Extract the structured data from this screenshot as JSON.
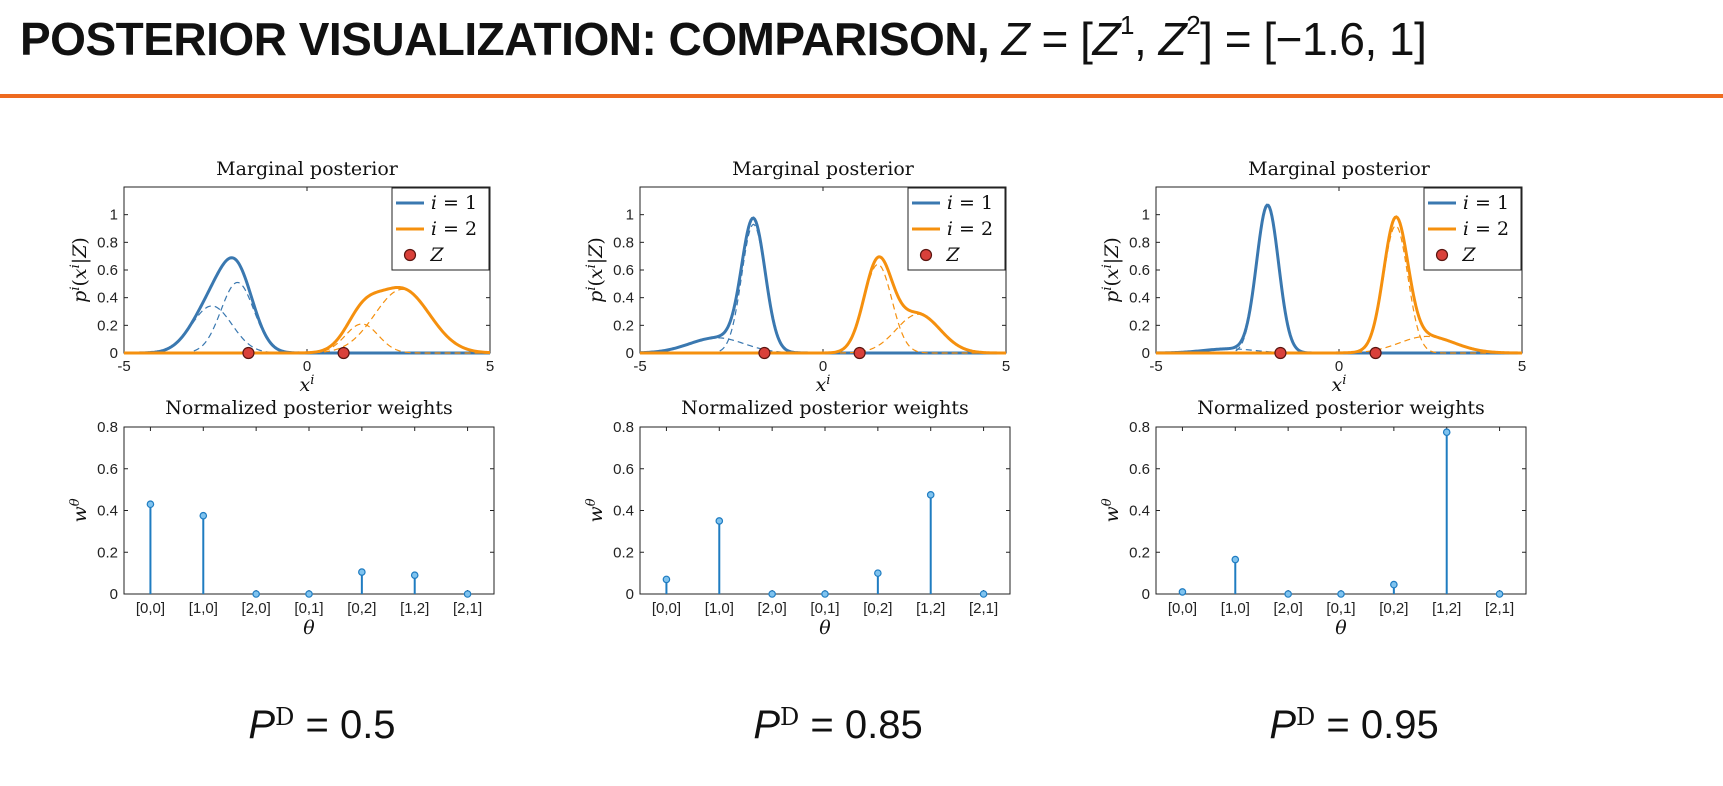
{
  "title": {
    "main": "POSTERIOR VISUALIZATION: COMPARISON, ",
    "math_z": "Z",
    "math_eq": " = [",
    "math_z1": "Z",
    "sup1": "1",
    "comma": ",  ",
    "math_z2": "Z",
    "sup2": "2",
    "math_rest": "] = [−1.6,  1]"
  },
  "colors": {
    "accent_rule": "#ee6a1f",
    "series_i1": "#3a78b0",
    "series_i2": "#f5900e",
    "marker_fill": "#d9403a",
    "stem": "#1f7cc1"
  },
  "chart_data": [
    {
      "type": "line",
      "title": "Marginal posterior",
      "xlabel": "x^i",
      "ylabel": "p^i(x^i|Z)",
      "xlim": [
        -5,
        5
      ],
      "ylim": [
        0,
        1.2
      ],
      "xticks": [
        "-5",
        "0",
        "5"
      ],
      "yticks": [
        "0",
        "0.2",
        "0.4",
        "0.6",
        "0.8",
        "1"
      ],
      "legend": {
        "placement": "top-right",
        "entries": [
          "i = 1",
          "i = 2",
          "Z"
        ]
      },
      "series": [
        {
          "name": "i = 1",
          "components": [
            {
              "mu": -2.6,
              "sigma": 0.55,
              "peak": 0.34
            },
            {
              "mu": -1.9,
              "sigma": 0.45,
              "peak": 0.51
            }
          ]
        },
        {
          "name": "i = 2",
          "components": [
            {
              "mu": 1.5,
              "sigma": 0.45,
              "peak": 0.21
            },
            {
              "mu": 2.6,
              "sigma": 0.75,
              "peak": 0.46
            }
          ]
        }
      ],
      "markers": {
        "name": "Z",
        "x": [
          -1.6,
          1
        ],
        "y": [
          0,
          0
        ]
      },
      "caption_value": "0.5"
    },
    {
      "type": "line",
      "title": "Marginal posterior",
      "xlabel": "x^i",
      "ylabel": "p^i(x^i|Z)",
      "xlim": [
        -5,
        5
      ],
      "ylim": [
        0,
        1.2
      ],
      "xticks": [
        "-5",
        "0",
        "5"
      ],
      "yticks": [
        "0",
        "0.2",
        "0.4",
        "0.6",
        "0.8",
        "1"
      ],
      "legend": {
        "placement": "top-right",
        "entries": [
          "i = 1",
          "i = 2",
          "Z"
        ]
      },
      "series": [
        {
          "name": "i = 1",
          "components": [
            {
              "mu": -2.9,
              "sigma": 0.75,
              "peak": 0.11
            },
            {
              "mu": -1.9,
              "sigma": 0.32,
              "peak": 0.93
            }
          ]
        },
        {
          "name": "i = 2",
          "components": [
            {
              "mu": 1.5,
              "sigma": 0.38,
              "peak": 0.64
            },
            {
              "mu": 2.6,
              "sigma": 0.6,
              "peak": 0.28
            }
          ]
        }
      ],
      "markers": {
        "name": "Z",
        "x": [
          -1.6,
          1
        ],
        "y": [
          0,
          0
        ]
      },
      "caption_value": "0.85"
    },
    {
      "type": "line",
      "title": "Marginal posterior",
      "xlabel": "x^i",
      "ylabel": "p^i(x^i|Z)",
      "xlim": [
        -5,
        5
      ],
      "ylim": [
        0,
        1.2
      ],
      "xticks": [
        "-5",
        "0",
        "5"
      ],
      "yticks": [
        "0",
        "0.2",
        "0.4",
        "0.6",
        "0.8",
        "1"
      ],
      "legend": {
        "placement": "top-right",
        "entries": [
          "i = 1",
          "i = 2",
          "Z"
        ]
      },
      "series": [
        {
          "name": "i = 1",
          "components": [
            {
              "mu": -3.0,
              "sigma": 0.7,
              "peak": 0.03
            },
            {
              "mu": -1.95,
              "sigma": 0.3,
              "peak": 1.06
            }
          ]
        },
        {
          "name": "i = 2",
          "components": [
            {
              "mu": 1.55,
              "sigma": 0.33,
              "peak": 0.92
            },
            {
              "mu": 2.4,
              "sigma": 0.75,
              "peak": 0.12
            }
          ]
        }
      ],
      "markers": {
        "name": "Z",
        "x": [
          -1.6,
          1
        ],
        "y": [
          0,
          0
        ]
      },
      "caption_value": "0.95"
    },
    {
      "type": "bar",
      "subtype": "stem",
      "title": "Normalized posterior weights",
      "xlabel": "θ",
      "ylabel": "w^θ",
      "ylim": [
        0,
        0.8
      ],
      "yticks": [
        "0",
        "0.2",
        "0.4",
        "0.6",
        "0.8"
      ],
      "categories": [
        "[0,0]",
        "[1,0]",
        "[2,0]",
        "[0,1]",
        "[0,2]",
        "[1,2]",
        "[2,1]"
      ],
      "values": [
        0.43,
        0.375,
        0.0,
        0.0,
        0.105,
        0.09,
        0.0
      ]
    },
    {
      "type": "bar",
      "subtype": "stem",
      "title": "Normalized posterior weights",
      "xlabel": "θ",
      "ylabel": "w^θ",
      "ylim": [
        0,
        0.8
      ],
      "yticks": [
        "0",
        "0.2",
        "0.4",
        "0.6",
        "0.8"
      ],
      "categories": [
        "[0,0]",
        "[1,0]",
        "[2,0]",
        "[0,1]",
        "[0,2]",
        "[1,2]",
        "[2,1]"
      ],
      "values": [
        0.07,
        0.35,
        0.0,
        0.0,
        0.1,
        0.475,
        0.0
      ]
    },
    {
      "type": "bar",
      "subtype": "stem",
      "title": "Normalized posterior weights",
      "xlabel": "θ",
      "ylabel": "w^θ",
      "ylim": [
        0,
        0.8
      ],
      "yticks": [
        "0",
        "0.2",
        "0.4",
        "0.6",
        "0.8"
      ],
      "categories": [
        "[0,0]",
        "[1,0]",
        "[2,0]",
        "[0,1]",
        "[0,2]",
        "[1,2]",
        "[2,1]"
      ],
      "values": [
        0.01,
        0.165,
        0.0,
        0.0,
        0.045,
        0.775,
        0.0
      ]
    }
  ],
  "captions": [
    {
      "p": "P",
      "sup": "D",
      "eq": " = 0.5"
    },
    {
      "p": "P",
      "sup": "D",
      "eq": " = 0.85"
    },
    {
      "p": "P",
      "sup": "D",
      "eq": " = 0.95"
    }
  ]
}
